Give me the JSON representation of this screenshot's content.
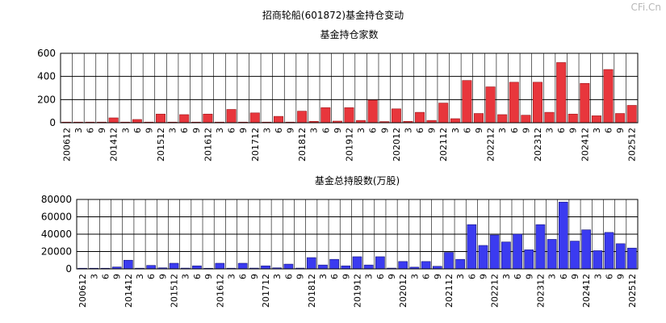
{
  "page": {
    "main_title": "招商轮船(601872)基金持仓变动",
    "watermark": "CFi.Cn"
  },
  "colors": {
    "bar_red": "#e8363c",
    "bar_red_dark": "#9a1418",
    "bar_blue": "#3b3bf0",
    "bar_blue_dark": "#14147a",
    "grid": "#000000",
    "watermark": "#b8b8b8"
  },
  "chart_data": [
    {
      "type": "bar",
      "title": "基金持仓家数",
      "ylim": [
        0,
        600
      ],
      "yticks": [
        0,
        200,
        400,
        600
      ],
      "grid": true,
      "categories": [
        "200612",
        "3",
        "6",
        "9",
        "201412",
        "3",
        "6",
        "9",
        "201512",
        "3",
        "6",
        "9",
        "201612",
        "3",
        "6",
        "9",
        "201712",
        "3",
        "6",
        "9",
        "201812",
        "3",
        "6",
        "9",
        "201912",
        "3",
        "6",
        "9",
        "202012",
        "3",
        "6",
        "9",
        "202112",
        "3",
        "6",
        "9",
        "202212",
        "3",
        "6",
        "9",
        "202312",
        "3",
        "6",
        "9",
        "202412",
        "3",
        "6",
        "9",
        "202512"
      ],
      "values": [
        5,
        2,
        2,
        2,
        42,
        4,
        28,
        4,
        75,
        5,
        70,
        4,
        75,
        5,
        115,
        5,
        85,
        5,
        55,
        4,
        100,
        12,
        130,
        14,
        130,
        20,
        195,
        10,
        120,
        12,
        90,
        20,
        170,
        35,
        365,
        80,
        310,
        70,
        350,
        65,
        350,
        90,
        520,
        75,
        340,
        60,
        460,
        80,
        150
      ]
    },
    {
      "type": "bar",
      "title": "基金总持股数(万股)",
      "ylim": [
        0,
        80000
      ],
      "yticks": [
        0,
        20000,
        40000,
        60000,
        80000
      ],
      "grid": true,
      "categories": [
        "200612",
        "3",
        "6",
        "9",
        "201412",
        "3",
        "6",
        "9",
        "201512",
        "3",
        "6",
        "9",
        "201612",
        "3",
        "6",
        "9",
        "201712",
        "3",
        "6",
        "9",
        "201812",
        "3",
        "6",
        "9",
        "201912",
        "3",
        "6",
        "9",
        "202012",
        "3",
        "6",
        "9",
        "202112",
        "3",
        "6",
        "9",
        "202212",
        "3",
        "6",
        "9",
        "202312",
        "3",
        "6",
        "9",
        "202412",
        "3",
        "6",
        "9",
        "202512"
      ],
      "values": [
        700,
        300,
        300,
        2200,
        10000,
        800,
        4000,
        1200,
        6500,
        900,
        3500,
        700,
        6500,
        800,
        6500,
        900,
        3500,
        1200,
        5500,
        900,
        13000,
        4500,
        11000,
        3500,
        14000,
        4500,
        14000,
        900,
        8500,
        2000,
        8500,
        3000,
        19000,
        11000,
        51000,
        27000,
        39000,
        31000,
        40000,
        22000,
        51000,
        34000,
        77000,
        32000,
        45000,
        21000,
        42000,
        29000,
        24000
      ]
    }
  ]
}
